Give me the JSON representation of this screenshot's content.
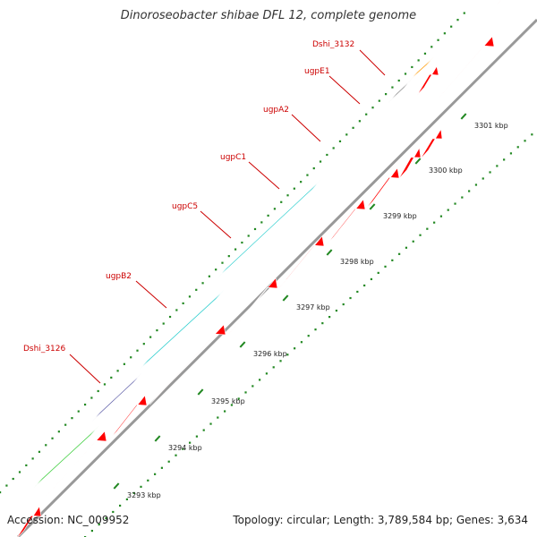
{
  "title": "Dinoroseobacter shibae DFL 12, complete genome",
  "footer": {
    "accession": "Accession: NC_009952",
    "summary": "Topology: circular; Length: 3,789,584 bp; Genes: 3,634"
  },
  "colors": {
    "cds_red": "#ff0000",
    "cyan": "#22cccc",
    "green": "#33cc33",
    "navy": "#444499",
    "gray": "#666666",
    "orange": "#ff9900",
    "label_red": "#cc0000",
    "tick_green": "#228822",
    "backbone": "#999999"
  },
  "gene_labels": [
    {
      "name": "Dshi_3126"
    },
    {
      "name": "ugpB2"
    },
    {
      "name": "ugpC5"
    },
    {
      "name": "ugpC1"
    },
    {
      "name": "ugpA2"
    },
    {
      "name": "ugpE1"
    },
    {
      "name": "Dshi_3132"
    }
  ],
  "scale_ticks": [
    {
      "label": "3293 kbp"
    },
    {
      "label": "3294 kbp"
    },
    {
      "label": "3295 kbp"
    },
    {
      "label": "3296 kbp"
    },
    {
      "label": "3297 kbp"
    },
    {
      "label": "3298 kbp"
    },
    {
      "label": "3299 kbp"
    },
    {
      "label": "3300 kbp"
    },
    {
      "label": "3301 kbp"
    }
  ]
}
